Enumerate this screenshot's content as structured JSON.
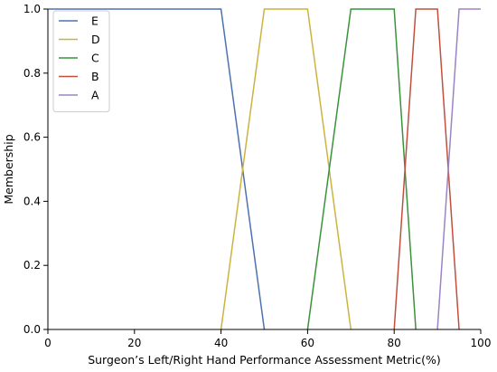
{
  "chart_data": {
    "type": "line",
    "xlabel": "Surgeon’s Left/Right Hand Performance Assessment Metric(%)",
    "ylabel": "Membership",
    "xlim": [
      0,
      100
    ],
    "ylim": [
      0,
      1
    ],
    "x_ticks": [
      0,
      20,
      40,
      60,
      80,
      100
    ],
    "y_ticks": [
      0.0,
      0.2,
      0.4,
      0.6,
      0.8,
      1.0
    ],
    "x_tick_labels": [
      "0",
      "20",
      "40",
      "60",
      "80",
      "100"
    ],
    "y_tick_labels": [
      "0.0",
      "0.2",
      "0.4",
      "0.6",
      "0.8",
      "1.0"
    ],
    "grid": false,
    "legend_position": "top-left",
    "series": [
      {
        "name": "E",
        "color": "#4c72b0",
        "x": [
          0,
          40,
          50
        ],
        "y": [
          1,
          1,
          0
        ]
      },
      {
        "name": "D",
        "color": "#ccb33f",
        "x": [
          40,
          50,
          60,
          70
        ],
        "y": [
          0,
          1,
          1,
          0
        ]
      },
      {
        "name": "C",
        "color": "#3a923a",
        "x": [
          60,
          70,
          80,
          85
        ],
        "y": [
          0,
          1,
          1,
          0
        ]
      },
      {
        "name": "B",
        "color": "#c0503e",
        "x": [
          80,
          85,
          90,
          95
        ],
        "y": [
          0,
          1,
          1,
          0
        ]
      },
      {
        "name": "A",
        "color": "#9d82c4",
        "x": [
          90,
          95,
          100
        ],
        "y": [
          0,
          1,
          1
        ]
      }
    ]
  }
}
